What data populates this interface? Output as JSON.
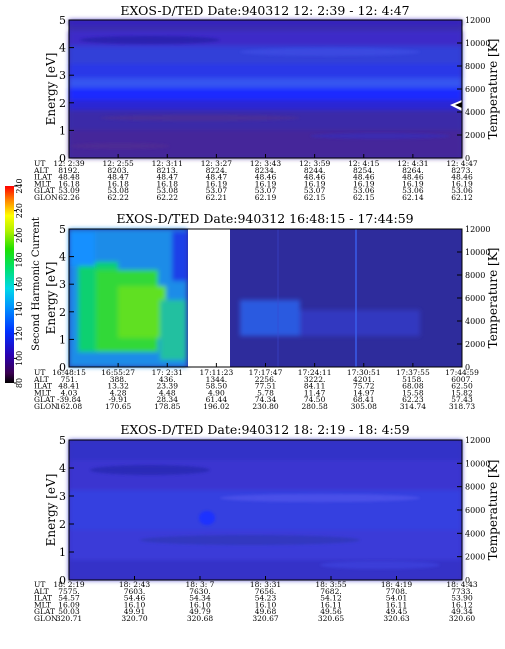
{
  "color_scale": {
    "label": "Second Harmonic Current",
    "ticks": [
      "80",
      "100",
      "120",
      "140",
      "160",
      "180",
      "200",
      "220",
      "240"
    ]
  },
  "chart_data": [
    {
      "type": "heatmap",
      "title": "EXOS-D/TED   Date:940312  12: 2:39 - 12: 4:47",
      "ylabel": "Energy [eV]",
      "y2label": "Temperature [K]",
      "yticks": [
        "0",
        "1",
        "2",
        "3",
        "4",
        "5"
      ],
      "y2ticks": [
        "0",
        "2000",
        "4000",
        "6000",
        "8000",
        "10000",
        "12000"
      ],
      "ylim": [
        0,
        5
      ],
      "y2lim": [
        0,
        12000
      ],
      "grid": false,
      "table": {
        "rows": [
          "UT",
          "ALT",
          "ILAT",
          "MLT",
          "GLAT",
          "GLON"
        ],
        "columns": [
          [
            "12: 2:39",
            "8192.",
            "48.48",
            "16.18",
            "53.09",
            "62.26"
          ],
          [
            "12: 2:55",
            "8203.",
            "48.47",
            "16.18",
            "53.08",
            "62.22"
          ],
          [
            "12: 3:11",
            "8213.",
            "48.47",
            "16.18",
            "53.08",
            "62.22"
          ],
          [
            "12: 3:27",
            "8224.",
            "48.47",
            "16.19",
            "53.07",
            "62.21"
          ],
          [
            "12: 3:43",
            "8234.",
            "48.46",
            "16.19",
            "53.07",
            "62.19"
          ],
          [
            "12: 3:59",
            "8244.",
            "48.46",
            "16.19",
            "53.07",
            "62.15"
          ],
          [
            "12: 4:15",
            "8254.",
            "48.46",
            "16.19",
            "53.06",
            "62.15"
          ],
          [
            "12: 4:31",
            "8264.",
            "48.46",
            "16.19",
            "53.06",
            "62.14"
          ],
          [
            "12: 4:47",
            "8273.",
            "48.46",
            "16.19",
            "53.06",
            "62.12"
          ]
        ]
      }
    },
    {
      "type": "heatmap",
      "title": "EXOS-D/TED   Date:940312  16:48:15 - 17:44:59",
      "ylabel": "Energy [eV]",
      "y2label": "Temperature [K]",
      "yticks": [
        "0",
        "1",
        "2",
        "3",
        "4",
        "5"
      ],
      "y2ticks": [
        "0",
        "2000",
        "4000",
        "6000",
        "8000",
        "10000",
        "12000"
      ],
      "ylim": [
        0,
        5
      ],
      "y2lim": [
        0,
        12000
      ],
      "grid": false,
      "table": {
        "rows": [
          "UT",
          "ALT",
          "ILAT",
          "MLT",
          "GLAT",
          "GLON"
        ],
        "columns": [
          [
            "16:48:15",
            "751.",
            "48.41",
            "4.03",
            "-39.84",
            "162.08"
          ],
          [
            "16:55:27",
            "388.",
            "13.32",
            "4.28",
            "-9.91",
            "170.65"
          ],
          [
            "17: 2:31",
            "436.",
            "23.39",
            "4.48",
            "28.34",
            "178.85"
          ],
          [
            "17:11:23",
            "1344.",
            "58.50",
            "4.90",
            "61.44",
            "196.02"
          ],
          [
            "17:17:47",
            "2256.",
            "77.51",
            "5.78",
            "74.34",
            "230.80"
          ],
          [
            "17:24:11",
            "3222.",
            "84.11",
            "11.47",
            "74.50",
            "280.58"
          ],
          [
            "17:30:51",
            "4201.",
            "75.72",
            "14.97",
            "68.41",
            "305.08"
          ],
          [
            "17:37:55",
            "5158.",
            "68.08",
            "15.58",
            "62.23",
            "314.74"
          ],
          [
            "17:44:59",
            "6007.",
            "62.50",
            "15.82",
            "57.43",
            "318.73"
          ]
        ]
      }
    },
    {
      "type": "heatmap",
      "title": "EXOS-D/TED   Date:940312  18: 2:19 - 18: 4:59",
      "ylabel": "Energy [eV]",
      "y2label": "Temperature [K]",
      "yticks": [
        "0",
        "1",
        "2",
        "3",
        "4",
        "5"
      ],
      "y2ticks": [
        "0",
        "2000",
        "4000",
        "6000",
        "8000",
        "10000",
        "12000"
      ],
      "ylim": [
        0,
        5
      ],
      "y2lim": [
        0,
        12000
      ],
      "grid": false,
      "table": {
        "rows": [
          "UT",
          "ALT",
          "ILAT",
          "MLT",
          "GLAT",
          "GLON"
        ],
        "columns": [
          [
            "18: 2:19",
            "7575.",
            "54.57",
            "16.09",
            "50.03",
            "320.71"
          ],
          [
            "18: 2:43",
            "7603.",
            "54.46",
            "16.10",
            "49.91",
            "320.70"
          ],
          [
            "18: 3: 7",
            "7630.",
            "54.34",
            "16.10",
            "49.79",
            "320.68"
          ],
          [
            "18: 3:31",
            "7656.",
            "54.23",
            "16.10",
            "49.68",
            "320.67"
          ],
          [
            "18: 3:55",
            "7682.",
            "54.12",
            "16.11",
            "49.56",
            "320.65"
          ],
          [
            "18: 4:19",
            "7708.",
            "54.01",
            "16.11",
            "49.45",
            "320.63"
          ],
          [
            "18: 4:43",
            "7733.",
            "53.90",
            "16.12",
            "49.34",
            "320.60"
          ]
        ]
      }
    }
  ]
}
